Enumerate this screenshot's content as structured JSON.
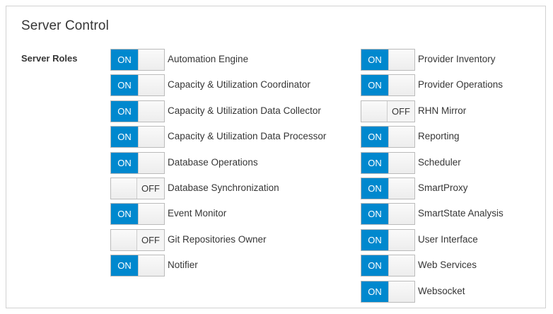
{
  "panel": {
    "title": "Server Control"
  },
  "section": {
    "label": "Server Roles"
  },
  "switch_labels": {
    "on": "ON",
    "off": "OFF"
  },
  "colors": {
    "on": "#0088ce",
    "off": "#f5f5f5",
    "border": "#bbbbbb"
  },
  "roles_left": [
    {
      "label": "Automation Engine",
      "state": "on"
    },
    {
      "label": "Capacity & Utilization Coordinator",
      "state": "on"
    },
    {
      "label": "Capacity & Utilization Data Collector",
      "state": "on"
    },
    {
      "label": "Capacity & Utilization Data Processor",
      "state": "on"
    },
    {
      "label": "Database Operations",
      "state": "on"
    },
    {
      "label": "Database Synchronization",
      "state": "off"
    },
    {
      "label": "Event Monitor",
      "state": "on"
    },
    {
      "label": "Git Repositories Owner",
      "state": "off"
    },
    {
      "label": "Notifier",
      "state": "on"
    }
  ],
  "roles_right": [
    {
      "label": "Provider Inventory",
      "state": "on"
    },
    {
      "label": "Provider Operations",
      "state": "on"
    },
    {
      "label": "RHN Mirror",
      "state": "off"
    },
    {
      "label": "Reporting",
      "state": "on"
    },
    {
      "label": "Scheduler",
      "state": "on"
    },
    {
      "label": "SmartProxy",
      "state": "on"
    },
    {
      "label": "SmartState Analysis",
      "state": "on"
    },
    {
      "label": "User Interface",
      "state": "on"
    },
    {
      "label": "Web Services",
      "state": "on"
    },
    {
      "label": "Websocket",
      "state": "on"
    }
  ]
}
